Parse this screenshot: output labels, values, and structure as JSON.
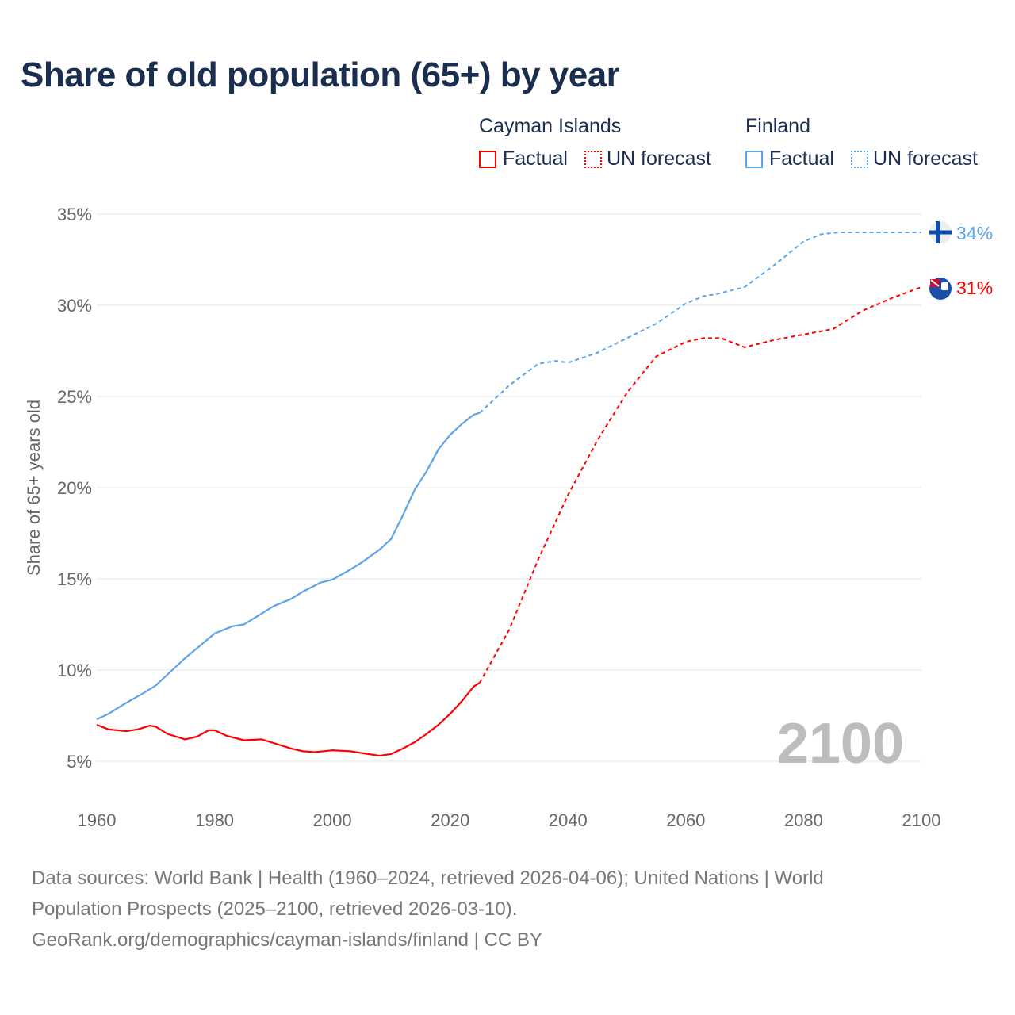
{
  "chart_data": {
    "type": "line",
    "title": "Share of old population (65+) by year",
    "ylabel": "Share of 65+ years old",
    "xlabel": "",
    "xlim": [
      1960,
      2100
    ],
    "ylim": [
      5,
      35
    ],
    "x_ticks": [
      "1960",
      "1980",
      "2000",
      "2020",
      "2040",
      "2060",
      "2080",
      "2100"
    ],
    "y_ticks": [
      "5%",
      "10%",
      "15%",
      "20%",
      "25%",
      "30%",
      "35%"
    ],
    "grid": true,
    "year_watermark": "2100",
    "legend": {
      "placement": "top-right",
      "groups": [
        {
          "name": "Cayman Islands",
          "factual": "Factual",
          "forecast": "UN forecast"
        },
        {
          "name": "Finland",
          "factual": "Factual",
          "forecast": "UN forecast"
        }
      ]
    },
    "series": [
      {
        "name": "Cayman Islands",
        "color": "#ff0000",
        "end_label": "31%",
        "flag": "cayman-islands-flag",
        "factual": {
          "x": [
            1960,
            1962,
            1965,
            1967,
            1969,
            1970,
            1972,
            1975,
            1977,
            1979,
            1980,
            1982,
            1985,
            1988,
            1990,
            1993,
            1995,
            1997,
            2000,
            2003,
            2005,
            2008,
            2010,
            2012,
            2014,
            2016,
            2018,
            2020,
            2022,
            2024,
            2025
          ],
          "y": [
            7.0,
            6.75,
            6.65,
            6.75,
            6.95,
            6.9,
            6.5,
            6.2,
            6.35,
            6.7,
            6.7,
            6.4,
            6.15,
            6.2,
            6.0,
            5.7,
            5.55,
            5.5,
            5.6,
            5.55,
            5.45,
            5.3,
            5.4,
            5.7,
            6.05,
            6.5,
            7.0,
            7.6,
            8.3,
            9.1,
            9.3
          ]
        },
        "forecast": {
          "x": [
            2025,
            2030,
            2035,
            2040,
            2045,
            2050,
            2055,
            2060,
            2063,
            2066,
            2070,
            2075,
            2080,
            2085,
            2090,
            2095,
            2100
          ],
          "y": [
            9.3,
            12.2,
            16.1,
            19.6,
            22.6,
            25.2,
            27.2,
            28.0,
            28.2,
            28.2,
            27.7,
            28.1,
            28.4,
            28.7,
            29.7,
            30.4,
            31.0
          ]
        }
      },
      {
        "name": "Finland",
        "color": "#5ba3ea",
        "end_label": "34%",
        "flag": "finland-flag",
        "factual": {
          "x": [
            1960,
            1962,
            1965,
            1968,
            1970,
            1975,
            1980,
            1983,
            1985,
            1988,
            1990,
            1993,
            1995,
            1998,
            2000,
            2003,
            2005,
            2008,
            2010,
            2012,
            2014,
            2016,
            2018,
            2020,
            2022,
            2024,
            2025
          ],
          "y": [
            7.3,
            7.6,
            8.2,
            8.75,
            9.15,
            10.65,
            12.0,
            12.4,
            12.5,
            13.1,
            13.5,
            13.9,
            14.3,
            14.8,
            14.95,
            15.5,
            15.9,
            16.6,
            17.2,
            18.5,
            19.9,
            20.9,
            22.1,
            22.9,
            23.5,
            24.0,
            24.1
          ]
        },
        "forecast": {
          "x": [
            2025,
            2030,
            2035,
            2038,
            2040,
            2045,
            2050,
            2055,
            2060,
            2063,
            2065,
            2070,
            2075,
            2080,
            2083,
            2086,
            2090,
            2100
          ],
          "y": [
            24.1,
            25.6,
            26.8,
            26.95,
            26.85,
            27.4,
            28.2,
            29.0,
            30.1,
            30.5,
            30.6,
            31.0,
            32.2,
            33.5,
            33.9,
            34.0,
            34.0,
            34.0
          ]
        }
      }
    ]
  },
  "footer": {
    "line1": "Data sources: World Bank | Health (1960–2024, retrieved 2026-04-06); United Nations | World",
    "line2": "Population Prospects (2025–2100, retrieved 2026-03-10).",
    "line3": "GeoRank.org/demographics/cayman-islands/finland | CC BY"
  }
}
